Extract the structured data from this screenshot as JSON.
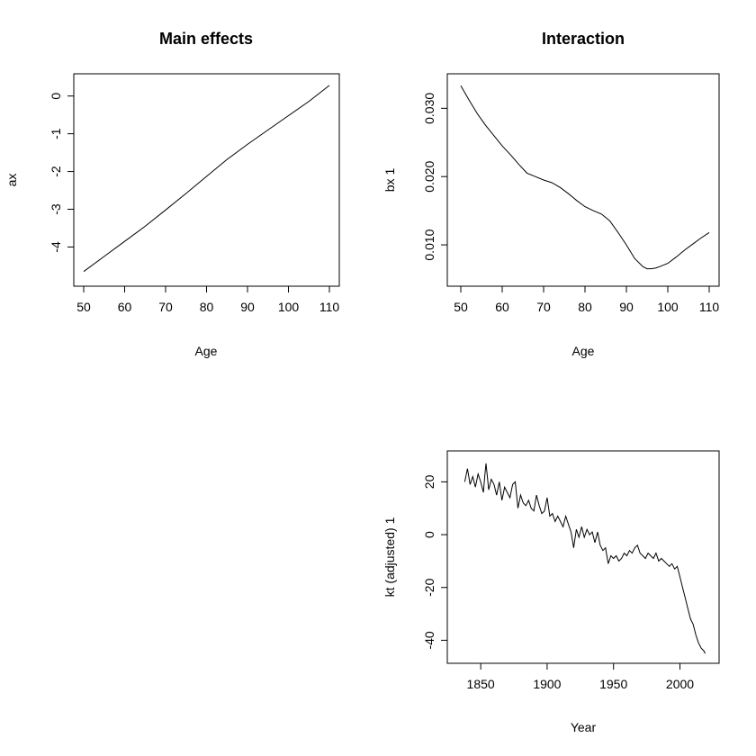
{
  "chart_data": [
    {
      "type": "line",
      "title": "Main effects",
      "xlabel": "Age",
      "ylabel": "ax",
      "xlim": [
        50,
        110
      ],
      "ylim": [
        -4.8,
        0.35
      ],
      "xticks": [
        50,
        60,
        70,
        80,
        90,
        100,
        110
      ],
      "yticks": [
        0,
        -1,
        -2,
        -3,
        -4
      ],
      "series": [
        {
          "x": [
            50,
            55,
            60,
            65,
            70,
            75,
            80,
            85,
            90,
            95,
            100,
            105,
            110
          ],
          "y": [
            -4.65,
            -4.25,
            -3.85,
            -3.45,
            -3.02,
            -2.58,
            -2.13,
            -1.68,
            -1.28,
            -0.9,
            -0.52,
            -0.14,
            0.28
          ]
        }
      ]
    },
    {
      "type": "line",
      "title": "Interaction",
      "xlabel": "Age",
      "ylabel": "bx 1",
      "xlim": [
        50,
        110
      ],
      "ylim": [
        0.005,
        0.034
      ],
      "xticks": [
        50,
        60,
        70,
        80,
        90,
        100,
        110
      ],
      "yticks": [
        0.01,
        0.02,
        0.03
      ],
      "ytick_labels": [
        "0.010",
        "0.020",
        "0.030"
      ],
      "series": [
        {
          "x": [
            50,
            52,
            54,
            56,
            58,
            60,
            62,
            64,
            66,
            68,
            70,
            72,
            74,
            76,
            78,
            80,
            82,
            84,
            86,
            88,
            90,
            92,
            94,
            95,
            96,
            97,
            98,
            100,
            102,
            104,
            106,
            108,
            110
          ],
          "y": [
            0.0333,
            0.0312,
            0.0292,
            0.0275,
            0.026,
            0.0245,
            0.0232,
            0.0218,
            0.0205,
            0.02,
            0.0195,
            0.0191,
            0.0184,
            0.0175,
            0.0165,
            0.0156,
            0.015,
            0.0145,
            0.0135,
            0.0118,
            0.01,
            0.008,
            0.0068,
            0.0065,
            0.0065,
            0.0066,
            0.0068,
            0.0073,
            0.0082,
            0.0092,
            0.0101,
            0.011,
            0.0118
          ]
        }
      ]
    },
    {
      "type": "line",
      "title": "",
      "xlabel": "Year",
      "ylabel": "kt (adjusted) 1",
      "xlim": [
        1835,
        2020
      ],
      "ylim": [
        -46,
        29
      ],
      "xticks": [
        1850,
        1900,
        1950,
        2000
      ],
      "yticks": [
        20,
        0,
        -20,
        -40
      ],
      "series": [
        {
          "x": [
            1838,
            1840,
            1842,
            1844,
            1846,
            1848,
            1850,
            1852,
            1853,
            1854,
            1856,
            1858,
            1860,
            1862,
            1864,
            1866,
            1868,
            1870,
            1872,
            1874,
            1876,
            1878,
            1880,
            1882,
            1884,
            1886,
            1888,
            1890,
            1892,
            1894,
            1896,
            1898,
            1900,
            1902,
            1904,
            1906,
            1908,
            1910,
            1912,
            1914,
            1916,
            1918,
            1920,
            1922,
            1924,
            1926,
            1928,
            1930,
            1932,
            1934,
            1936,
            1938,
            1940,
            1942,
            1944,
            1946,
            1948,
            1950,
            1952,
            1954,
            1956,
            1958,
            1960,
            1962,
            1964,
            1966,
            1968,
            1970,
            1972,
            1974,
            1976,
            1978,
            1980,
            1982,
            1984,
            1986,
            1988,
            1990,
            1992,
            1994,
            1996,
            1998,
            2000,
            2002,
            2004,
            2006,
            2008,
            2010,
            2012,
            2014,
            2016,
            2018,
            2019
          ],
          "y": [
            20,
            25,
            19,
            22,
            18,
            23,
            20,
            16,
            22,
            27,
            17,
            21,
            19,
            15,
            20,
            13,
            18,
            16,
            14,
            19,
            20,
            10,
            15,
            12,
            11,
            13,
            10,
            9,
            15,
            11,
            8,
            9,
            14,
            7,
            8,
            5,
            7,
            5,
            3,
            7,
            4,
            1,
            -5,
            2,
            -1,
            3,
            -1,
            2,
            0,
            1,
            -3,
            1,
            -4,
            -6,
            -5,
            -11,
            -8,
            -9,
            -8,
            -10,
            -9,
            -7,
            -8,
            -6,
            -7,
            -5,
            -4,
            -7,
            -8,
            -9,
            -7,
            -8,
            -9,
            -7,
            -10,
            -9,
            -10,
            -11,
            -12,
            -11,
            -13,
            -12,
            -16,
            -20,
            -24,
            -28,
            -32,
            -34,
            -38,
            -41,
            -43,
            -44,
            -45
          ]
        }
      ]
    }
  ]
}
